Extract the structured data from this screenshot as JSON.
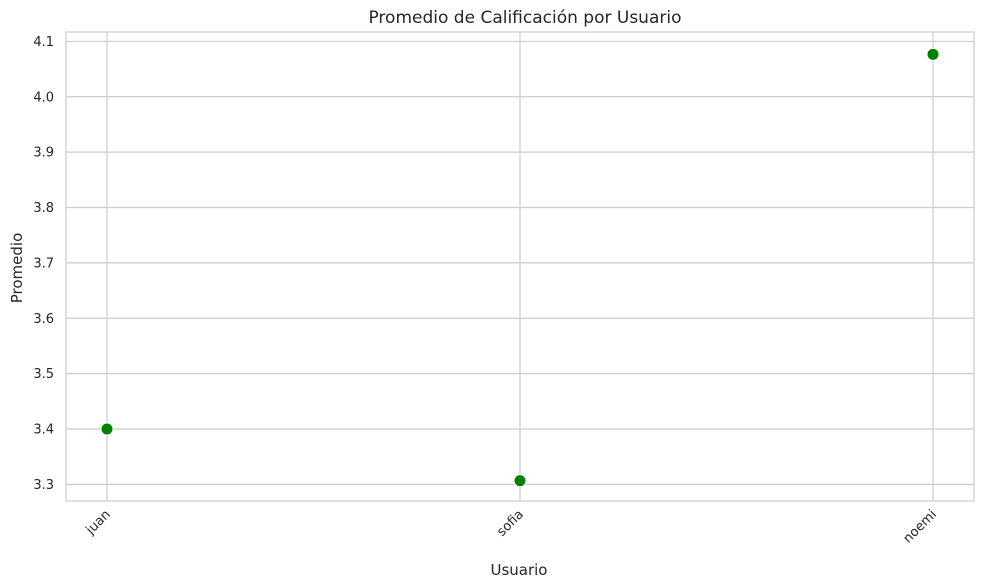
{
  "chart_data": {
    "type": "scatter",
    "title": "Promedio de Calificación por Usuario",
    "xlabel": "Usuario",
    "ylabel": "Promedio",
    "categories": [
      "juan",
      "sofia",
      "noemi"
    ],
    "values": [
      3.4,
      3.3067,
      4.0767
    ],
    "ylim": [
      3.27,
      4.117
    ],
    "yticks": [
      "3.3",
      "3.4",
      "3.5",
      "3.6",
      "3.7",
      "3.8",
      "3.9",
      "4.0",
      "4.1"
    ],
    "yticks_values": [
      3.3,
      3.4,
      3.5,
      3.6,
      3.7,
      3.8,
      3.9,
      4.0,
      4.1
    ],
    "grid": true,
    "marker_color": "#008000",
    "x_tick_rotation_deg": 45
  }
}
